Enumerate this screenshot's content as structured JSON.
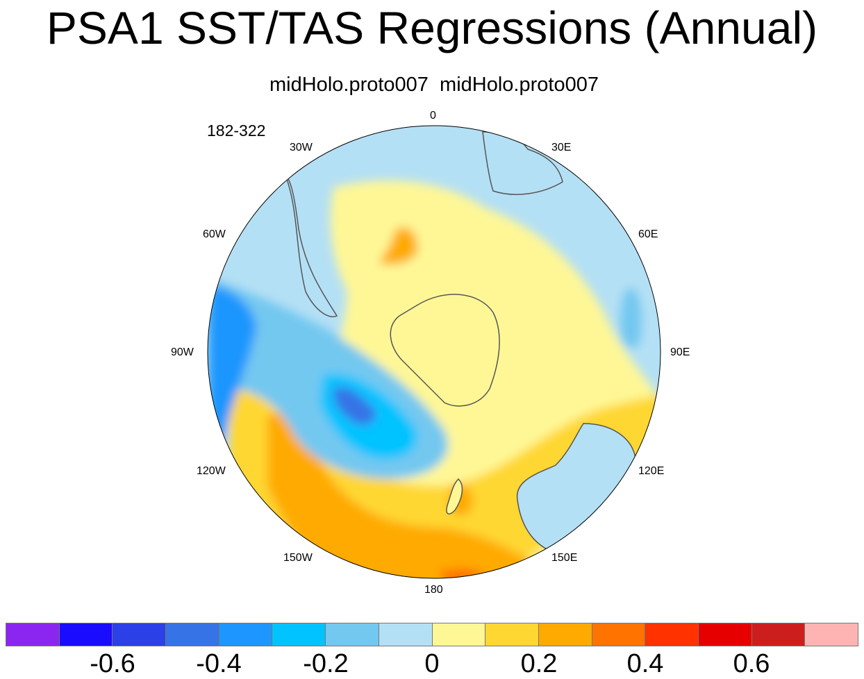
{
  "title": "PSA1 SST/TAS Regressions (Annual)",
  "subtitle": "midHolo.proto007  midHolo.proto007",
  "years": "182-322",
  "longitude_labels": [
    "0",
    "30E",
    "60E",
    "90E",
    "120E",
    "150E",
    "180",
    "150W",
    "120W",
    "90W",
    "60W",
    "30W"
  ],
  "colorbar": {
    "colors": [
      "#8a26f0",
      "#1a0dff",
      "#2b40e6",
      "#3573e6",
      "#1e96ff",
      "#00c3ff",
      "#73c8f0",
      "#b4e0f5",
      "#fff796",
      "#ffd732",
      "#ffaa00",
      "#ff7300",
      "#ff3200",
      "#e60000",
      "#cd1e1e",
      "#ffb4b4"
    ],
    "labels": [
      "-0.6",
      "-0.4",
      "-0.2",
      "0",
      "0.2",
      "0.4",
      "0.6"
    ]
  },
  "map": {
    "ocean_color": "#b4e0f5",
    "land_mask_color": "#ffffff",
    "coast_color": "#555555"
  }
}
